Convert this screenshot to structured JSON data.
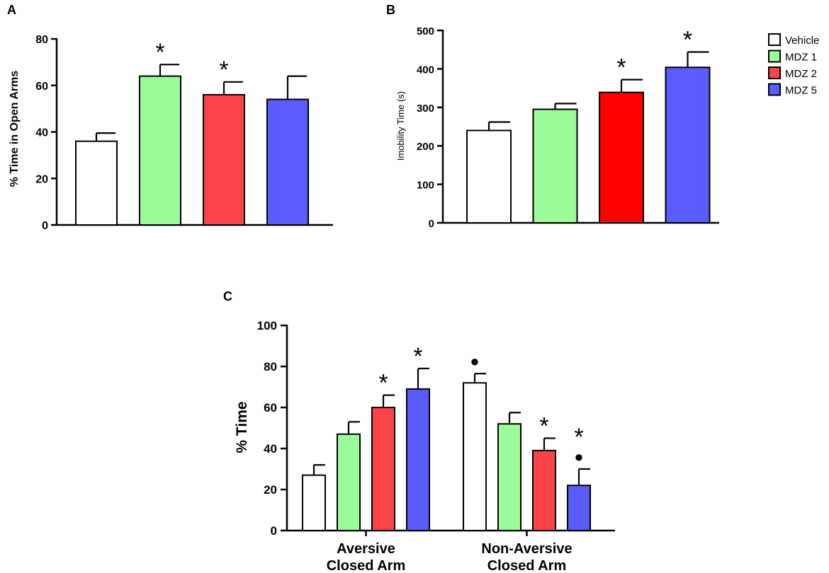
{
  "chart_data": [
    {
      "panel": "A",
      "type": "bar",
      "title": "",
      "xlabel": "",
      "ylabel": "% Time in Open Arms",
      "ylim": [
        0,
        80
      ],
      "yticks": [
        "0",
        "20",
        "40",
        "60",
        "80"
      ],
      "categories": [
        "Vehicle",
        "MDZ 1",
        "MDZ 2",
        "MDZ 5"
      ],
      "values": [
        36,
        64,
        56,
        54
      ],
      "errors": [
        3.5,
        5,
        5.5,
        10
      ],
      "colors": [
        "#ffffff",
        "#9dfc9a",
        "#fc4448",
        "#5a5cfc"
      ],
      "markers": [
        "",
        "*",
        "*",
        ""
      ]
    },
    {
      "panel": "B",
      "type": "bar",
      "title": "",
      "xlabel": "",
      "ylabel": "Imobility Time (s)",
      "ylim": [
        0,
        500
      ],
      "yticks": [
        "0",
        "100",
        "200",
        "300",
        "400",
        "500"
      ],
      "categories": [
        "Vehicle",
        "MDZ 1",
        "MDZ 2",
        "MDZ 5"
      ],
      "values": [
        240,
        295,
        339,
        404
      ],
      "errors": [
        22,
        15,
        33,
        40
      ],
      "colors": [
        "#ffffff",
        "#9dfc9a",
        "#ff0000",
        "#5a5cfc"
      ],
      "markers": [
        "",
        "",
        "*",
        "*"
      ]
    },
    {
      "panel": "C",
      "type": "bar",
      "title": "",
      "xlabel": "",
      "ylabel": "% Time",
      "ylim": [
        0,
        100
      ],
      "yticks": [
        "0",
        "20",
        "40",
        "60",
        "80",
        "100"
      ],
      "categories": [
        "Aversive Closed Arm",
        "Non-Aversive Closed Arm"
      ],
      "category_lines": [
        [
          "Aversive",
          "Closed Arm"
        ],
        [
          "Non-Aversive",
          "Closed Arm"
        ]
      ],
      "series": [
        {
          "name": "Vehicle",
          "color": "#ffffff",
          "values": [
            27,
            72
          ],
          "errors": [
            5,
            4.5
          ],
          "markers": [
            "",
            "●"
          ]
        },
        {
          "name": "MDZ 1",
          "color": "#9dfc9a",
          "values": [
            47,
            52
          ],
          "errors": [
            6,
            5.5
          ],
          "markers": [
            "",
            ""
          ]
        },
        {
          "name": "MDZ 2",
          "color": "#fc4448",
          "values": [
            60,
            39
          ],
          "errors": [
            6,
            6
          ],
          "markers": [
            "*",
            "*"
          ]
        },
        {
          "name": "MDZ 5",
          "color": "#5a5cfc",
          "values": [
            69,
            22
          ],
          "errors": [
            10,
            8
          ],
          "markers": [
            "*",
            "*●"
          ]
        }
      ]
    }
  ],
  "legend": {
    "position": "top-right",
    "items": [
      {
        "label": "Vehicle",
        "color": "#ffffff"
      },
      {
        "label": "MDZ 1",
        "color": "#9dfc9a"
      },
      {
        "label": "MDZ 2",
        "color": "#fc4448"
      },
      {
        "label": "MDZ 5",
        "color": "#5a5cfc"
      }
    ]
  }
}
